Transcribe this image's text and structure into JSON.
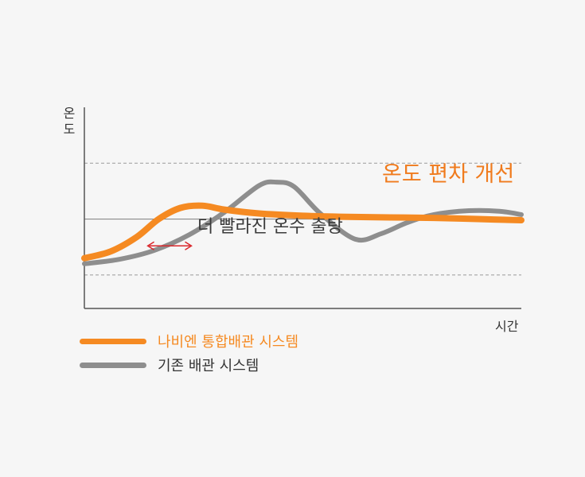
{
  "chart_data": {
    "type": "line",
    "ylabel": "온도",
    "xlabel": "시간",
    "annotations": {
      "faster": "더 빨라진 온수 출탕",
      "improve": "온도 편차 개선"
    },
    "series": [
      {
        "name": "나비엔 통합배관 시스템",
        "color": "#f58a22",
        "x": [
          0,
          0.06,
          0.12,
          0.17,
          0.22,
          0.27,
          0.32,
          0.4,
          0.5,
          0.6,
          0.7,
          0.8,
          0.9,
          1.0
        ],
        "y": [
          -0.7,
          -0.58,
          -0.32,
          0.0,
          0.2,
          0.24,
          0.17,
          0.1,
          0.06,
          0.04,
          0.03,
          0.02,
          0.0,
          -0.02
        ]
      },
      {
        "name": "기존 배관 시스템",
        "color": "#8e8e8e",
        "x": [
          0,
          0.08,
          0.16,
          0.24,
          0.32,
          0.4,
          0.44,
          0.48,
          0.54,
          0.62,
          0.68,
          0.74,
          0.8,
          0.88,
          0.95,
          1.0
        ],
        "y": [
          -0.8,
          -0.72,
          -0.56,
          -0.28,
          0.12,
          0.6,
          0.66,
          0.58,
          0.1,
          -0.36,
          -0.26,
          -0.06,
          0.08,
          0.15,
          0.14,
          0.08
        ]
      }
    ],
    "reference_lines": {
      "target": 0,
      "upper_band": 1,
      "lower_band": -1
    },
    "ylim": [
      -1.6,
      2.0
    ],
    "xlim": [
      0,
      1
    ]
  },
  "legend": {
    "items": [
      {
        "label": "나비엔 통합배관 시스템",
        "color": "#f58a22"
      },
      {
        "label": "기존 배관 시스템",
        "color": "#8e8e8e"
      }
    ]
  }
}
